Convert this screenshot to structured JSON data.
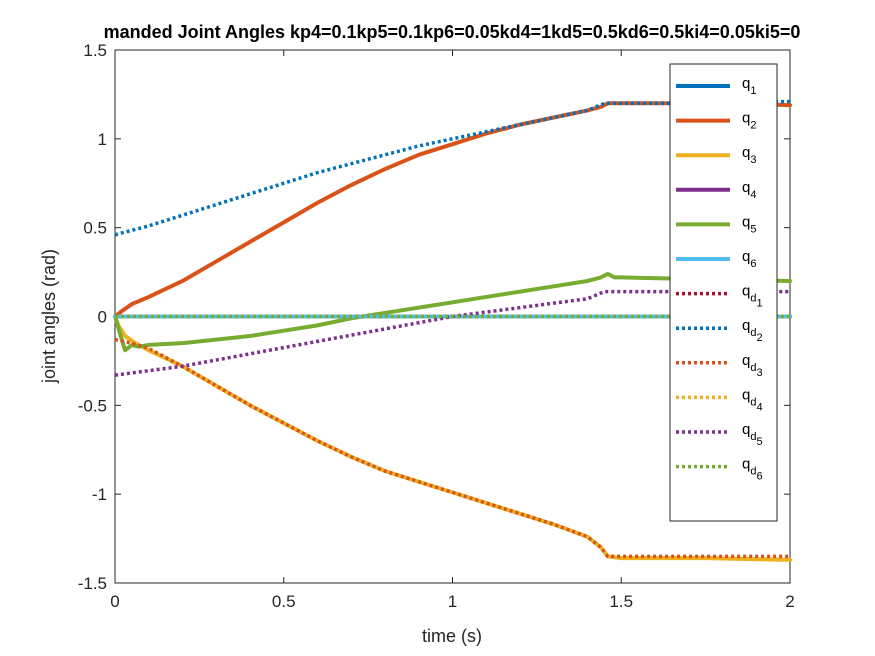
{
  "chart_data": {
    "type": "line",
    "title": "manded Joint Angles kp4=0.1kp5=0.1kp6=0.05kd4=1kd5=0.5kd6=0.5ki4=0.05ki5=0",
    "xlabel": "time (s)",
    "ylabel": "joint angles (rad)",
    "xlim": [
      0,
      2
    ],
    "ylim": [
      -1.5,
      1.5
    ],
    "xticks": [
      0,
      0.5,
      1,
      1.5,
      2
    ],
    "xtick_labels": [
      "0",
      "0.5",
      "1",
      "1.5",
      "2"
    ],
    "yticks": [
      -1.5,
      -1,
      -0.5,
      0,
      0.5,
      1,
      1.5
    ],
    "ytick_labels": [
      "-1.5",
      "-1",
      "-0.5",
      "0",
      "0.5",
      "1",
      "1.5"
    ],
    "grid": false,
    "legend_position": "top-right (inside)",
    "series": [
      {
        "label_main": "q",
        "label_sub": "1",
        "color": "#0072BD",
        "style": "solid",
        "x": [
          0,
          0.25,
          0.5,
          0.75,
          1,
          1.25,
          1.5,
          1.75,
          2
        ],
        "y": [
          0,
          0,
          0,
          0,
          0,
          0,
          0,
          0,
          0
        ]
      },
      {
        "label_main": "q",
        "label_sub": "2",
        "color": "#D95319",
        "style": "solid",
        "x": [
          0,
          0.02,
          0.05,
          0.1,
          0.2,
          0.3,
          0.4,
          0.5,
          0.6,
          0.7,
          0.8,
          0.9,
          1.0,
          1.1,
          1.2,
          1.3,
          1.4,
          1.44,
          1.46,
          1.5,
          1.6,
          1.8,
          2.0
        ],
        "y": [
          0,
          0.03,
          0.07,
          0.11,
          0.2,
          0.31,
          0.42,
          0.53,
          0.64,
          0.74,
          0.83,
          0.91,
          0.97,
          1.03,
          1.08,
          1.12,
          1.16,
          1.18,
          1.2,
          1.2,
          1.2,
          1.2,
          1.19
        ]
      },
      {
        "label_main": "q",
        "label_sub": "3",
        "color": "#EDB120",
        "style": "solid",
        "x": [
          0,
          0.01,
          0.03,
          0.06,
          0.1,
          0.2,
          0.3,
          0.4,
          0.5,
          0.6,
          0.7,
          0.8,
          0.9,
          1.0,
          1.1,
          1.2,
          1.3,
          1.4,
          1.44,
          1.46,
          1.5,
          1.75,
          2.0
        ],
        "y": [
          0,
          -0.05,
          -0.11,
          -0.15,
          -0.19,
          -0.28,
          -0.39,
          -0.5,
          -0.6,
          -0.7,
          -0.79,
          -0.87,
          -0.93,
          -0.99,
          -1.05,
          -1.11,
          -1.17,
          -1.24,
          -1.3,
          -1.35,
          -1.36,
          -1.36,
          -1.37
        ]
      },
      {
        "label_main": "q",
        "label_sub": "4",
        "color": "#7E2F8E",
        "style": "solid",
        "x": [
          0,
          2
        ],
        "y": [
          0,
          0
        ]
      },
      {
        "label_main": "q",
        "label_sub": "5",
        "color": "#77AC30",
        "style": "solid",
        "x": [
          0,
          0.02,
          0.03,
          0.05,
          0.07,
          0.1,
          0.2,
          0.3,
          0.4,
          0.5,
          0.6,
          0.7,
          0.8,
          0.9,
          1.0,
          1.1,
          1.2,
          1.3,
          1.4,
          1.44,
          1.46,
          1.48,
          1.5,
          1.75,
          2.0
        ],
        "y": [
          0,
          -0.13,
          -0.19,
          -0.16,
          -0.17,
          -0.16,
          -0.15,
          -0.13,
          -0.11,
          -0.08,
          -0.05,
          -0.01,
          0.02,
          0.05,
          0.08,
          0.11,
          0.14,
          0.17,
          0.2,
          0.22,
          0.24,
          0.22,
          0.22,
          0.21,
          0.2
        ]
      },
      {
        "label_main": "q",
        "label_sub": "6",
        "color": "#4DBEEE",
        "style": "solid",
        "x": [
          0,
          2
        ],
        "y": [
          0,
          0
        ]
      },
      {
        "label_main": "q",
        "label_sub": "d",
        "label_subsub": "1",
        "color": "#A2142F",
        "style": "dotted",
        "x": [
          0,
          2
        ],
        "y": [
          0,
          0
        ]
      },
      {
        "label_main": "q",
        "label_sub": "d",
        "label_subsub": "2",
        "color": "#0072BD",
        "style": "dotted",
        "x": [
          0,
          0.1,
          0.2,
          0.3,
          0.4,
          0.5,
          0.6,
          0.7,
          0.8,
          0.9,
          1.0,
          1.1,
          1.2,
          1.3,
          1.4,
          1.45,
          1.5,
          1.75,
          2.0
        ],
        "y": [
          0.46,
          0.51,
          0.57,
          0.63,
          0.69,
          0.75,
          0.81,
          0.86,
          0.91,
          0.96,
          1.0,
          1.04,
          1.08,
          1.12,
          1.16,
          1.2,
          1.2,
          1.2,
          1.21
        ]
      },
      {
        "label_main": "q",
        "label_sub": "d",
        "label_subsub": "3",
        "color": "#D95319",
        "style": "dotted",
        "x": [
          0,
          0.05,
          0.1,
          0.2,
          0.3,
          0.4,
          0.5,
          0.6,
          0.7,
          0.8,
          0.9,
          1.0,
          1.1,
          1.2,
          1.3,
          1.4,
          1.44,
          1.46,
          1.5,
          1.75,
          2.0
        ],
        "y": [
          -0.13,
          -0.15,
          -0.18,
          -0.28,
          -0.39,
          -0.5,
          -0.6,
          -0.7,
          -0.79,
          -0.87,
          -0.93,
          -0.99,
          -1.05,
          -1.11,
          -1.17,
          -1.24,
          -1.3,
          -1.35,
          -1.35,
          -1.35,
          -1.35
        ]
      },
      {
        "label_main": "q",
        "label_sub": "d",
        "label_subsub": "4",
        "color": "#EDB120",
        "style": "dotted",
        "x": [
          0,
          2
        ],
        "y": [
          0,
          0
        ]
      },
      {
        "label_main": "q",
        "label_sub": "d",
        "label_subsub": "5",
        "color": "#7E2F8E",
        "style": "dotted",
        "x": [
          0,
          0.2,
          0.4,
          0.6,
          0.8,
          1.0,
          1.2,
          1.4,
          1.45,
          1.5,
          1.75,
          2.0
        ],
        "y": [
          -0.33,
          -0.28,
          -0.21,
          -0.14,
          -0.07,
          0.0,
          0.05,
          0.1,
          0.14,
          0.14,
          0.14,
          0.14
        ]
      },
      {
        "label_main": "q",
        "label_sub": "d",
        "label_subsub": "6",
        "color": "#77AC30",
        "style": "dotted",
        "x": [
          0,
          2
        ],
        "y": [
          0,
          0
        ]
      }
    ]
  }
}
